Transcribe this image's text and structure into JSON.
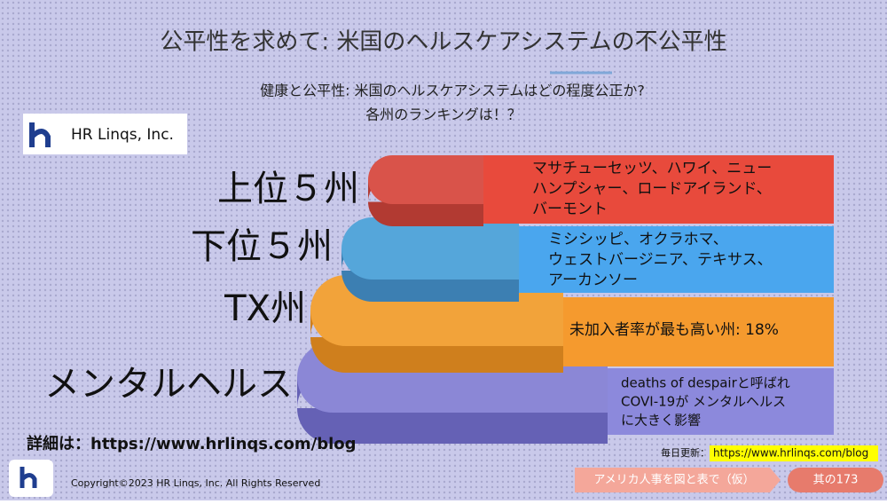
{
  "header": {
    "title": "公平性を求めて: 米国のヘルスケアシステムの不公平性",
    "subtitle": [
      "健康と公平性: 米国のヘルスケアシステムはどの程度公正か?",
      "各州のランキングは！？"
    ]
  },
  "logo": {
    "text": "HR Linqs, Inc."
  },
  "tiers": [
    {
      "label": "上位５州",
      "lines": [
        "マサチューセッツ、ハワイ、ニュー",
        "ハンプシャー、ロードアイランド、",
        "バーモント"
      ]
    },
    {
      "label": "下位５州",
      "lines": [
        "ミシシッピ、オクラホマ、",
        "ウェストバージニア、テキサス、",
        "アーカンソー"
      ]
    },
    {
      "label": "TX州",
      "lines": [
        "未加入者率が最も高い州: 18%"
      ]
    },
    {
      "label": "メンタルヘルス",
      "lines": [
        "deaths of despairと呼ばれ",
        "COVI-19が メンタルヘルス",
        "に大きく影響"
      ]
    }
  ],
  "footer": {
    "detail": "詳細は：https://www.hrlinqs.com/blog",
    "copyright": "Copyright©2023 HR Linqs, Inc. All Rights Reserved",
    "update_label": "毎日更新：",
    "update_url": "https://www.hrlinqs.com/blog",
    "series": "アメリカ人事を図と表で（仮）",
    "number": "其の173"
  }
}
